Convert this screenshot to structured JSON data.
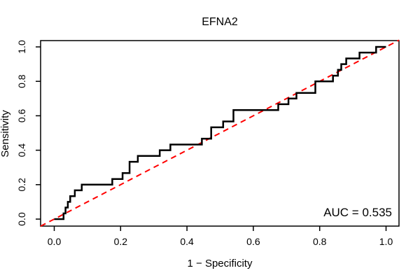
{
  "title": "EFNA2",
  "axes": {
    "x": {
      "label": "1 − Specificity",
      "tick_labels": [
        "0.0",
        "0.2",
        "0.4",
        "0.6",
        "0.8",
        "1.0"
      ],
      "tick_values": [
        0.0,
        0.2,
        0.4,
        0.6,
        0.8,
        1.0
      ]
    },
    "y": {
      "label": "Sensitivity",
      "tick_labels": [
        "0.0",
        "0.2",
        "0.4",
        "0.6",
        "0.8",
        "1.0"
      ],
      "tick_values": [
        0.0,
        0.2,
        0.4,
        0.6,
        0.8,
        1.0
      ]
    }
  },
  "annotation": {
    "text": "AUC = 0.535",
    "value": 0.535
  },
  "colors": {
    "roc_curve": "#000000",
    "chance_line": "#ff0000",
    "axis": "#000000",
    "text": "#000000",
    "background": "#ffffff"
  },
  "chart_data": {
    "type": "line",
    "subtype": "roc-step-curve",
    "title": "EFNA2",
    "xlabel": "1 − Specificity",
    "ylabel": "Sensitivity",
    "xlim": [
      -0.04,
      1.04
    ],
    "ylim": [
      -0.04,
      1.04
    ],
    "grid": false,
    "legend": "none",
    "auc": 0.535,
    "series": [
      {
        "name": "ROC curve (EFNA2)",
        "color": "#000000",
        "line_style": "solid",
        "line_width": 2.5,
        "step": true,
        "points": [
          [
            0.0,
            0.0
          ],
          [
            0.028,
            0.0
          ],
          [
            0.028,
            0.033
          ],
          [
            0.034,
            0.033
          ],
          [
            0.034,
            0.067
          ],
          [
            0.041,
            0.067
          ],
          [
            0.041,
            0.1
          ],
          [
            0.048,
            0.1
          ],
          [
            0.048,
            0.133
          ],
          [
            0.062,
            0.133
          ],
          [
            0.062,
            0.167
          ],
          [
            0.083,
            0.167
          ],
          [
            0.083,
            0.2
          ],
          [
            0.175,
            0.2
          ],
          [
            0.175,
            0.233
          ],
          [
            0.206,
            0.233
          ],
          [
            0.206,
            0.267
          ],
          [
            0.227,
            0.267
          ],
          [
            0.227,
            0.333
          ],
          [
            0.252,
            0.333
          ],
          [
            0.252,
            0.367
          ],
          [
            0.318,
            0.367
          ],
          [
            0.318,
            0.4
          ],
          [
            0.35,
            0.4
          ],
          [
            0.35,
            0.433
          ],
          [
            0.445,
            0.433
          ],
          [
            0.445,
            0.467
          ],
          [
            0.473,
            0.467
          ],
          [
            0.473,
            0.533
          ],
          [
            0.509,
            0.533
          ],
          [
            0.509,
            0.567
          ],
          [
            0.54,
            0.567
          ],
          [
            0.54,
            0.633
          ],
          [
            0.675,
            0.633
          ],
          [
            0.675,
            0.667
          ],
          [
            0.706,
            0.667
          ],
          [
            0.706,
            0.7
          ],
          [
            0.73,
            0.7
          ],
          [
            0.73,
            0.733
          ],
          [
            0.787,
            0.733
          ],
          [
            0.787,
            0.8
          ],
          [
            0.84,
            0.8
          ],
          [
            0.84,
            0.833
          ],
          [
            0.855,
            0.833
          ],
          [
            0.855,
            0.867
          ],
          [
            0.865,
            0.867
          ],
          [
            0.865,
            0.9
          ],
          [
            0.88,
            0.9
          ],
          [
            0.88,
            0.933
          ],
          [
            0.92,
            0.933
          ],
          [
            0.92,
            0.967
          ],
          [
            0.97,
            0.967
          ],
          [
            0.97,
            1.0
          ],
          [
            1.0,
            1.0
          ]
        ]
      },
      {
        "name": "Chance diagonal",
        "color": "#ff0000",
        "line_style": "dashed",
        "line_width": 2,
        "step": false,
        "points": [
          [
            0.0,
            0.0
          ],
          [
            1.0,
            1.0
          ]
        ]
      }
    ],
    "annotations": [
      {
        "text": "AUC = 0.535",
        "x": 1.0,
        "y": 0.05,
        "anchor": "right"
      }
    ]
  }
}
